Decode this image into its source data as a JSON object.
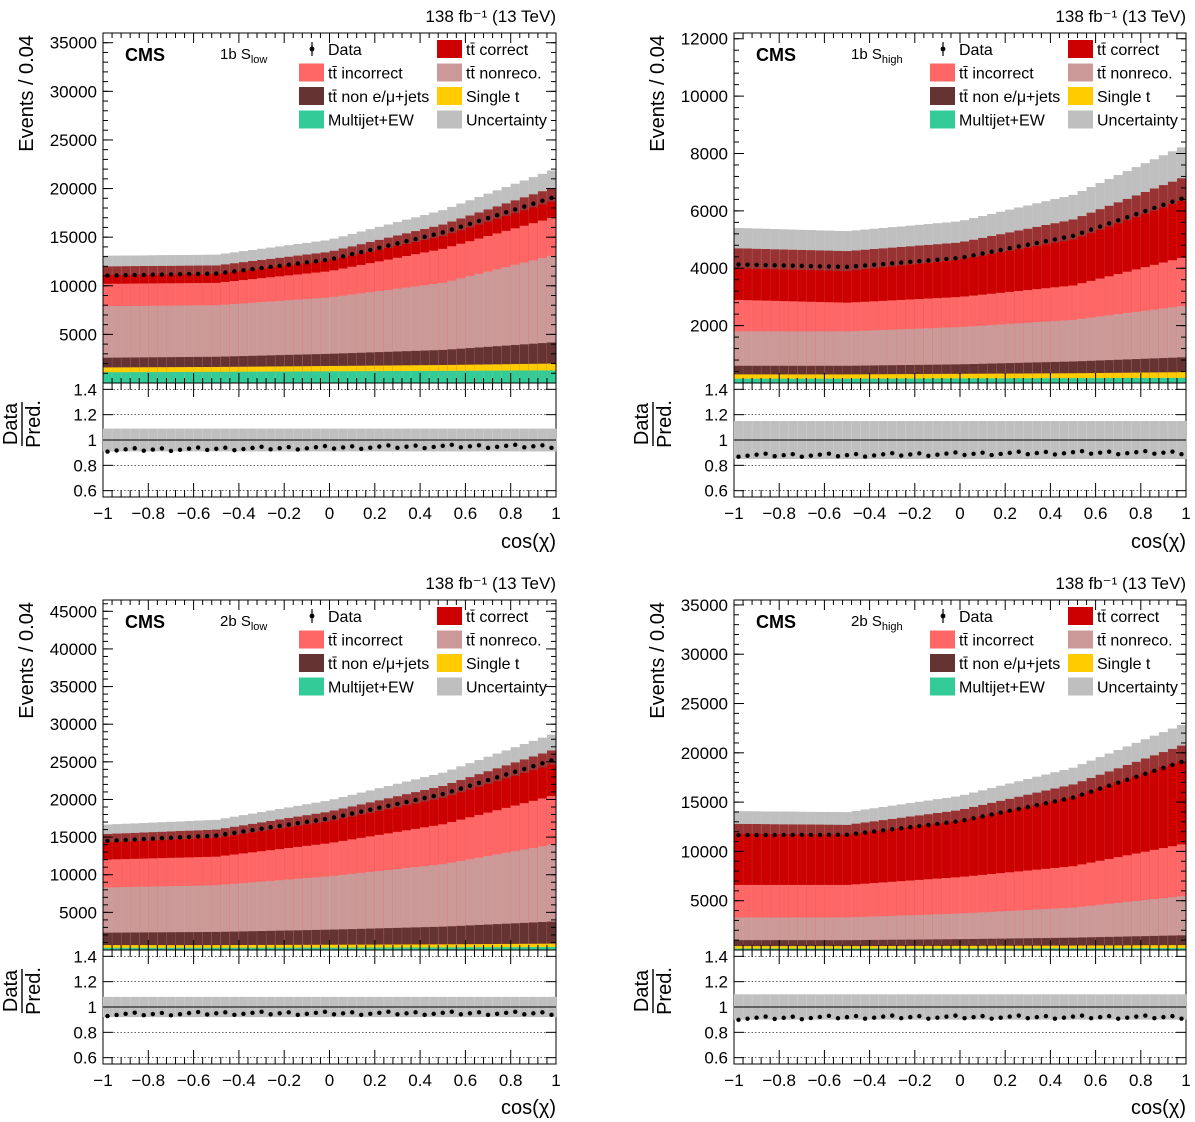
{
  "colors": {
    "correct": "#cc0000",
    "incorrect": "#ff6666",
    "nonreco": "#cc9999",
    "nonlep": "#663333",
    "single_t": "#ffcc00",
    "multijet": "#33cc99",
    "uncertainty": "#bfbfbf",
    "data": "#000000"
  },
  "legend": {
    "data": "Data",
    "correct": "tt̄ correct",
    "incorrect": "tt̄ incorrect",
    "nonreco": "tt̄ nonreco.",
    "nonlep": "tt̄ non e/μ+jets",
    "single_t": "Single t",
    "multijet": "Multijet+EW",
    "uncertainty": "Uncertainty"
  },
  "chart_data": [
    {
      "type": "bar",
      "experiment": "CMS",
      "lumi_label": "138 fb⁻¹ (13 TeV)",
      "category": "1b",
      "region": "S",
      "region_sub": "low",
      "ylabel": "Events / 0.04",
      "xlabel": "cos(χ)",
      "ratio_ylabel": [
        "Data",
        "Pred."
      ],
      "xlim": [
        -1,
        1
      ],
      "ylim": [
        0,
        36000
      ],
      "yticks": [
        5000,
        10000,
        15000,
        20000,
        25000,
        30000,
        35000
      ],
      "ratio_ylim": [
        0.55,
        1.45
      ],
      "ratio_yticks": [
        0.6,
        0.8,
        1,
        1.2,
        1.4
      ],
      "xticks": [
        -1,
        -0.8,
        -0.6,
        -0.4,
        -0.2,
        0,
        0.2,
        0.4,
        0.6,
        0.8,
        1
      ],
      "bin_width": 0.04,
      "stack_at_edges": {
        "x": [
          -1,
          -0.5,
          0,
          0.5,
          1
        ],
        "multijet": [
          1100,
          1150,
          1200,
          1250,
          1300
        ],
        "single_t": [
          1600,
          1650,
          1750,
          1850,
          2000
        ],
        "nonlep": [
          2600,
          2700,
          3000,
          3400,
          4200
        ],
        "nonreco": [
          7900,
          8000,
          8800,
          10300,
          13200
        ],
        "incorrect": [
          10200,
          10300,
          11500,
          13800,
          17100
        ],
        "correct": [
          11100,
          11200,
          12600,
          15100,
          18800
        ],
        "total": [
          12000,
          12100,
          13500,
          16300,
          20200
        ]
      },
      "uncertainty_rel": 0.09,
      "ratio_data": [
        0.92,
        0.93,
        0.94,
        0.95,
        0.95
      ]
    },
    {
      "type": "bar",
      "experiment": "CMS",
      "lumi_label": "138 fb⁻¹ (13 TeV)",
      "category": "1b",
      "region": "S",
      "region_sub": "high",
      "ylabel": "Events / 0.04",
      "xlabel": "cos(χ)",
      "ratio_ylabel": [
        "Data",
        "Pred."
      ],
      "xlim": [
        -1,
        1
      ],
      "ylim": [
        0,
        12200
      ],
      "yticks": [
        2000,
        4000,
        6000,
        8000,
        10000,
        12000
      ],
      "ratio_ylim": [
        0.55,
        1.45
      ],
      "ratio_yticks": [
        0.6,
        0.8,
        1,
        1.2,
        1.4
      ],
      "xticks": [
        -1,
        -0.8,
        -0.6,
        -0.4,
        -0.2,
        0,
        0.2,
        0.4,
        0.6,
        0.8,
        1
      ],
      "bin_width": 0.04,
      "stack_at_edges": {
        "x": [
          -1,
          -0.5,
          0,
          0.5,
          1
        ],
        "multijet": [
          150,
          150,
          160,
          170,
          180
        ],
        "single_t": [
          300,
          300,
          320,
          340,
          380
        ],
        "nonlep": [
          600,
          600,
          650,
          750,
          900
        ],
        "nonreco": [
          1800,
          1800,
          1950,
          2200,
          2700
        ],
        "incorrect": [
          2900,
          2800,
          3000,
          3400,
          4400
        ],
        "correct": [
          4000,
          3900,
          4300,
          5000,
          6400
        ],
        "total": [
          4700,
          4600,
          4900,
          5700,
          7200
        ]
      },
      "uncertainty_rel": 0.15,
      "ratio_data": [
        0.88,
        0.88,
        0.89,
        0.9,
        0.9
      ]
    },
    {
      "type": "bar",
      "experiment": "CMS",
      "lumi_label": "138 fb⁻¹ (13 TeV)",
      "category": "2b",
      "region": "S",
      "region_sub": "low",
      "ylabel": "Events / 0.04",
      "xlabel": "cos(χ)",
      "ratio_ylabel": [
        "Data",
        "Pred."
      ],
      "xlim": [
        -1,
        1
      ],
      "ylim": [
        0,
        46500
      ],
      "yticks": [
        5000,
        10000,
        15000,
        20000,
        25000,
        30000,
        35000,
        40000,
        45000
      ],
      "ratio_ylim": [
        0.55,
        1.45
      ],
      "ratio_yticks": [
        0.6,
        0.8,
        1,
        1.2,
        1.4
      ],
      "xticks": [
        -1,
        -0.8,
        -0.6,
        -0.4,
        -0.2,
        0,
        0.2,
        0.4,
        0.6,
        0.8,
        1
      ],
      "bin_width": 0.04,
      "stack_at_edges": {
        "x": [
          -1,
          -0.5,
          0,
          0.5,
          1
        ],
        "multijet": [
          300,
          300,
          320,
          350,
          400
        ],
        "single_t": [
          650,
          650,
          700,
          750,
          850
        ],
        "nonlep": [
          2300,
          2400,
          2700,
          3100,
          3800
        ],
        "nonreco": [
          8300,
          8600,
          9800,
          11400,
          14100
        ],
        "incorrect": [
          12000,
          12400,
          14200,
          16700,
          20600
        ],
        "correct": [
          14300,
          14900,
          17100,
          20200,
          24800
        ],
        "total": [
          15400,
          16000,
          18400,
          21800,
          26700
        ]
      },
      "uncertainty_rel": 0.08,
      "ratio_data": [
        0.94,
        0.95,
        0.95,
        0.95,
        0.95
      ]
    },
    {
      "type": "bar",
      "experiment": "CMS",
      "lumi_label": "138 fb⁻¹ (13 TeV)",
      "category": "2b",
      "region": "S",
      "region_sub": "high",
      "ylabel": "Events / 0.04",
      "xlabel": "cos(χ)",
      "ratio_ylabel": [
        "Data",
        "Pred."
      ],
      "xlim": [
        -1,
        1
      ],
      "ylim": [
        0,
        35500
      ],
      "yticks": [
        5000,
        10000,
        15000,
        20000,
        25000,
        30000,
        35000
      ],
      "ratio_ylim": [
        0.55,
        1.45
      ],
      "ratio_yticks": [
        0.6,
        0.8,
        1,
        1.2,
        1.4
      ],
      "xticks": [
        -1,
        -0.8,
        -0.6,
        -0.4,
        -0.2,
        0,
        0.2,
        0.4,
        0.6,
        0.8,
        1
      ],
      "bin_width": 0.04,
      "stack_at_edges": {
        "x": [
          -1,
          -0.5,
          0,
          0.5,
          1
        ],
        "multijet": [
          150,
          150,
          160,
          170,
          200
        ],
        "single_t": [
          400,
          400,
          420,
          450,
          500
        ],
        "nonlep": [
          1000,
          1000,
          1100,
          1250,
          1500
        ],
        "nonreco": [
          3300,
          3300,
          3700,
          4300,
          5500
        ],
        "incorrect": [
          6600,
          6600,
          7400,
          8500,
          10800
        ],
        "correct": [
          11800,
          11700,
          13100,
          15500,
          19300
        ],
        "total": [
          12800,
          12700,
          14200,
          16800,
          20900
        ]
      },
      "uncertainty_rel": 0.1,
      "ratio_data": [
        0.91,
        0.92,
        0.92,
        0.92,
        0.92
      ]
    }
  ]
}
